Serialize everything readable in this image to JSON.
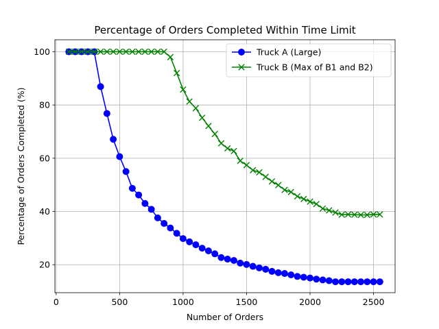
{
  "chart_data": {
    "type": "line",
    "title": "Percentage of Orders Completed Within Time Limit",
    "xlabel": "Number of Orders",
    "ylabel": "Percentage of Orders Completed (%)",
    "xlim": [
      -10,
      2670
    ],
    "ylim": [
      9.5,
      104.5
    ],
    "xticks": [
      0,
      500,
      1000,
      1500,
      2000,
      2500
    ],
    "yticks": [
      20,
      40,
      60,
      80,
      100
    ],
    "grid": true,
    "legend_position": "top-right",
    "series": [
      {
        "name": "Truck A (Large)",
        "color": "#0000ff",
        "marker": "circle",
        "x": [
          100,
          150,
          200,
          250,
          300,
          350,
          400,
          450,
          500,
          550,
          600,
          650,
          700,
          750,
          800,
          850,
          900,
          950,
          1000,
          1050,
          1100,
          1150,
          1200,
          1250,
          1300,
          1350,
          1400,
          1450,
          1500,
          1550,
          1600,
          1650,
          1700,
          1750,
          1800,
          1850,
          1900,
          1950,
          2000,
          2050,
          2100,
          2150,
          2200,
          2250,
          2300,
          2350,
          2400,
          2450,
          2500,
          2550
        ],
        "y": [
          100,
          100,
          100,
          100,
          100,
          86.9,
          76.8,
          67.1,
          60.6,
          55.0,
          48.7,
          46.2,
          43.0,
          40.8,
          37.6,
          35.5,
          33.8,
          31.8,
          29.8,
          28.6,
          27.5,
          26.2,
          25.2,
          24.1,
          22.7,
          22.1,
          21.6,
          20.6,
          20.1,
          19.4,
          18.8,
          18.3,
          17.5,
          17.0,
          16.7,
          16.2,
          15.6,
          15.3,
          15.0,
          14.6,
          14.3,
          14.0,
          13.6,
          13.6,
          13.6,
          13.6,
          13.6,
          13.6,
          13.6,
          13.6
        ]
      },
      {
        "name": "Truck B (Max of B1 and B2)",
        "color": "#008000",
        "marker": "x",
        "x": [
          100,
          150,
          200,
          250,
          300,
          350,
          400,
          450,
          500,
          550,
          600,
          650,
          700,
          750,
          800,
          850,
          900,
          950,
          1000,
          1050,
          1100,
          1150,
          1200,
          1250,
          1300,
          1350,
          1400,
          1450,
          1500,
          1550,
          1600,
          1650,
          1700,
          1750,
          1800,
          1850,
          1900,
          1950,
          2000,
          2050,
          2100,
          2150,
          2200,
          2250,
          2300,
          2350,
          2400,
          2450,
          2500,
          2550
        ],
        "y": [
          100,
          100,
          100,
          100,
          100,
          100,
          100,
          100,
          100,
          100,
          100,
          100,
          100,
          100,
          100,
          100,
          98.0,
          92.0,
          85.8,
          81.3,
          78.8,
          75.2,
          72.1,
          69.1,
          65.6,
          63.7,
          62.7,
          59.0,
          57.4,
          55.5,
          54.7,
          53.0,
          51.3,
          49.9,
          48.1,
          47.3,
          45.7,
          44.7,
          43.7,
          42.8,
          41.1,
          40.4,
          39.6,
          38.8,
          38.9,
          38.8,
          38.7,
          38.7,
          38.9,
          38.9
        ]
      }
    ]
  }
}
